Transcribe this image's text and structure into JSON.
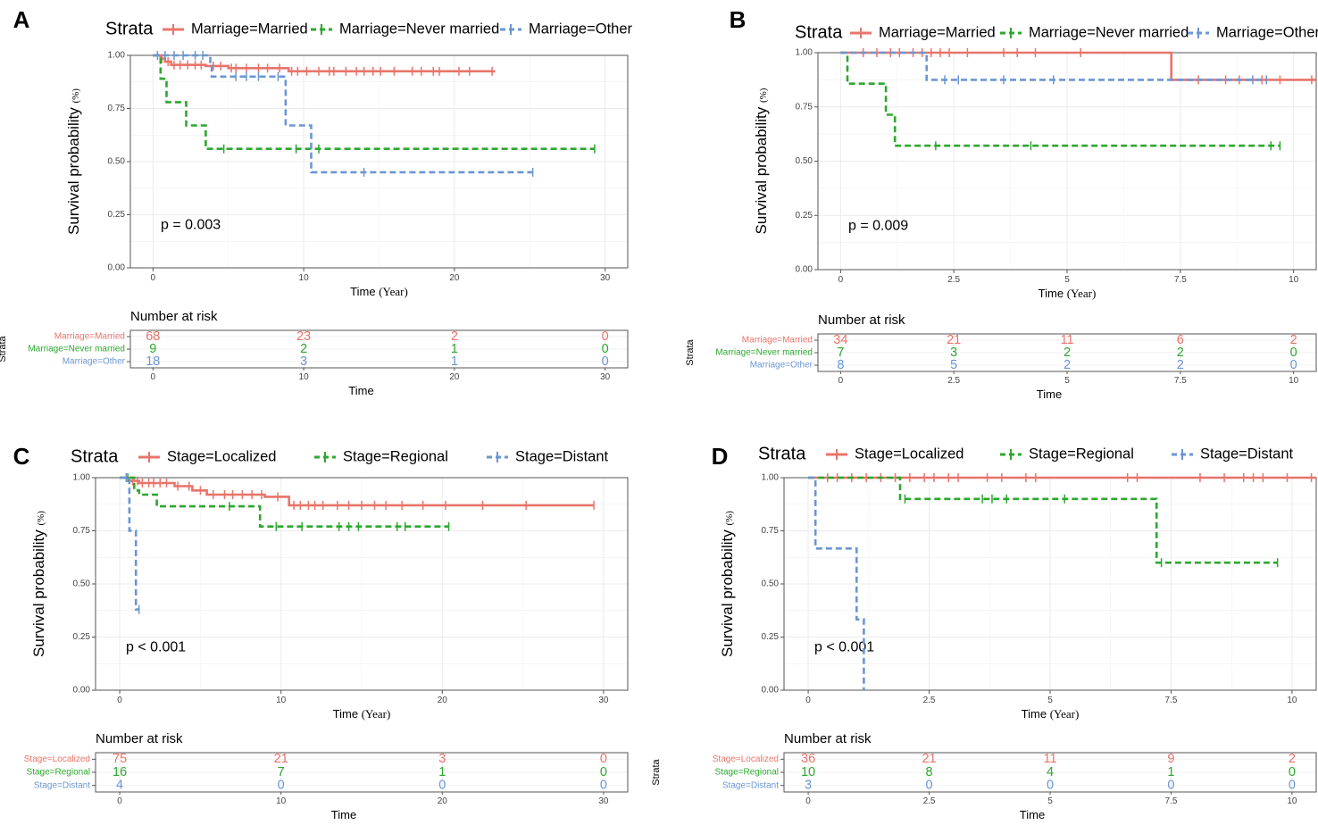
{
  "figure": {
    "common": {
      "legend_title": "Strata",
      "y_axis_label": "Survival probability",
      "y_axis_unit": "(%)",
      "x_axis_label": "Time",
      "x_axis_unit": "(Year)",
      "risk_title": "Number at risk",
      "risk_y_label": "Strata",
      "risk_x_label": "Time",
      "y_ticks": [
        "0.00",
        "0.25",
        "0.50",
        "0.75",
        "1.00"
      ]
    },
    "colors": {
      "red": "#E8746A",
      "green": "#2CA82E",
      "blue": "#6A96D4"
    }
  },
  "chart_data": [
    {
      "panel": "A",
      "type": "line",
      "legend": [
        "Marriage=Married",
        "Marriage=Never married",
        "Marriage=Other"
      ],
      "xlim": [
        -1.5,
        31.5
      ],
      "ylim": [
        0,
        1
      ],
      "x_ticks": [
        0,
        10,
        20,
        30
      ],
      "x_tick_labels": [
        "0",
        "10",
        "20",
        "30"
      ],
      "pvalue": "p = 0.003",
      "series": [
        {
          "name": "Marriage=Married",
          "color": "red",
          "dash": false,
          "steps": [
            [
              0,
              1
            ],
            [
              0.5,
              0.985
            ],
            [
              0.8,
              0.97
            ],
            [
              1.2,
              0.955
            ],
            [
              3.5,
              0.95
            ],
            [
              5,
              0.94
            ],
            [
              9,
              0.925
            ],
            [
              22.7,
              0.925
            ]
          ],
          "censors": [
            0.6,
            1.0,
            1.4,
            1.8,
            2.3,
            2.8,
            3.2,
            4.0,
            4.5,
            5.2,
            5.5,
            6.2,
            7.0,
            7.6,
            8.4,
            9.2,
            9.6,
            10.2,
            11.0,
            11.7,
            12.0,
            12.8,
            13.5,
            14.0,
            14.6,
            15.1,
            16.0,
            17.2,
            17.8,
            18.6,
            19.0,
            20.3,
            21.0,
            22.5
          ]
        },
        {
          "name": "Marriage=Never married",
          "color": "green",
          "dash": true,
          "steps": [
            [
              0,
              1
            ],
            [
              0.5,
              0.89
            ],
            [
              0.9,
              0.78
            ],
            [
              2.2,
              0.67
            ],
            [
              3.5,
              0.56
            ],
            [
              29.3,
              0.56
            ]
          ],
          "censors": [
            4.7,
            9.5,
            11.0,
            29.3
          ]
        },
        {
          "name": "Marriage=Other",
          "color": "blue",
          "dash": true,
          "steps": [
            [
              0,
              1
            ],
            [
              3.8,
              0.95
            ],
            [
              3.9,
              0.9
            ],
            [
              8.8,
              0.67
            ],
            [
              10.5,
              0.45
            ],
            [
              25.2,
              0.45
            ]
          ],
          "censors": [
            0.3,
            0.8,
            1.4,
            2.0,
            2.8,
            3.3,
            5.5,
            6.2,
            7.0,
            8.3,
            14.0,
            25.2
          ]
        }
      ],
      "risk": {
        "x": [
          0,
          10,
          20,
          30
        ],
        "rows": [
          {
            "label": "Marriage=Married",
            "color": "red",
            "values": [
              "68",
              "23",
              "2",
              "0"
            ]
          },
          {
            "label": "Marriage=Never married",
            "color": "green",
            "values": [
              "9",
              "2",
              "1",
              "0"
            ]
          },
          {
            "label": "Marriage=Other",
            "color": "blue",
            "values": [
              "18",
              "3",
              "1",
              "0"
            ]
          }
        ]
      }
    },
    {
      "panel": "B",
      "type": "line",
      "legend": [
        "Marriage=Married",
        "Marriage=Never married",
        "Marriage=Other"
      ],
      "xlim": [
        -0.5,
        10.5
      ],
      "ylim": [
        0,
        1
      ],
      "x_ticks": [
        0,
        2.5,
        5,
        7.5,
        10
      ],
      "x_tick_labels": [
        "0",
        "2.5",
        "5",
        "7.5",
        "10"
      ],
      "pvalue": "p = 0.009",
      "series": [
        {
          "name": "Marriage=Married",
          "color": "red",
          "dash": false,
          "steps": [
            [
              0,
              1
            ],
            [
              7.3,
              0.875
            ],
            [
              10.5,
              0.875
            ]
          ],
          "censors": [
            0.5,
            0.8,
            1.1,
            1.3,
            1.6,
            1.8,
            2.0,
            2.2,
            2.4,
            2.8,
            3.6,
            3.9,
            4.3,
            5.3,
            7.9,
            8.5,
            8.8,
            9.3,
            9.7,
            10.4
          ]
        },
        {
          "name": "Marriage=Never married",
          "color": "green",
          "dash": true,
          "steps": [
            [
              0,
              1
            ],
            [
              0.15,
              0.857
            ],
            [
              1.0,
              0.714
            ],
            [
              1.2,
              0.571
            ],
            [
              9.7,
              0.571
            ]
          ],
          "censors": [
            2.1,
            4.2,
            9.5,
            9.7
          ]
        },
        {
          "name": "Marriage=Other",
          "color": "blue",
          "dash": true,
          "steps": [
            [
              0,
              1
            ],
            [
              1.9,
              0.875
            ],
            [
              9.4,
              0.875
            ]
          ],
          "censors": [
            2.3,
            2.6,
            3.6,
            4.7,
            9.1,
            9.4
          ]
        }
      ],
      "risk": {
        "x": [
          0,
          2.5,
          5,
          7.5,
          10
        ],
        "rows": [
          {
            "label": "Marriage=Married",
            "color": "red",
            "values": [
              "34",
              "21",
              "11",
              "6",
              "2"
            ]
          },
          {
            "label": "Marriage=Never married",
            "color": "green",
            "values": [
              "7",
              "3",
              "2",
              "2",
              "0"
            ]
          },
          {
            "label": "Marriage=Other",
            "color": "blue",
            "values": [
              "8",
              "5",
              "2",
              "2",
              "0"
            ]
          }
        ]
      }
    },
    {
      "panel": "C",
      "type": "line",
      "legend": [
        "Stage=Localized",
        "Stage=Regional",
        "Stage=Distant"
      ],
      "xlim": [
        -1.5,
        31.5
      ],
      "ylim": [
        0,
        1
      ],
      "x_ticks": [
        0,
        10,
        20,
        30
      ],
      "x_tick_labels": [
        "0",
        "10",
        "20",
        "30"
      ],
      "pvalue": "p < 0.001",
      "series": [
        {
          "name": "Stage=Localized",
          "color": "red",
          "dash": false,
          "steps": [
            [
              0,
              1
            ],
            [
              0.6,
              0.985
            ],
            [
              1.2,
              0.975
            ],
            [
              3.4,
              0.96
            ],
            [
              4.5,
              0.94
            ],
            [
              5.4,
              0.92
            ],
            [
              9.0,
              0.91
            ],
            [
              10.5,
              0.87
            ],
            [
              29.4,
              0.87
            ]
          ],
          "censors": [
            0.8,
            1.1,
            1.4,
            1.8,
            2.1,
            2.5,
            2.9,
            3.6,
            4.3,
            5.0,
            5.8,
            6.5,
            7.0,
            7.6,
            8.2,
            8.8,
            9.8,
            10.8,
            11.2,
            11.7,
            12.1,
            12.6,
            13.5,
            14.2,
            15.0,
            15.8,
            16.5,
            17.5,
            18.8,
            20.2,
            22.5,
            25.2,
            29.4
          ]
        },
        {
          "name": "Stage=Regional",
          "color": "green",
          "dash": true,
          "steps": [
            [
              0,
              1
            ],
            [
              0.9,
              0.94
            ],
            [
              1.2,
              0.92
            ],
            [
              2.3,
              0.865
            ],
            [
              8.7,
              0.77
            ],
            [
              20.4,
              0.77
            ]
          ],
          "censors": [
            0.5,
            6.8,
            9.7,
            11.3,
            13.6,
            14.2,
            14.8,
            17.2,
            17.7,
            20.4
          ]
        },
        {
          "name": "Stage=Distant",
          "color": "blue",
          "dash": true,
          "steps": [
            [
              0,
              1
            ],
            [
              0.6,
              0.75
            ],
            [
              1.0,
              0.38
            ],
            [
              1.2,
              0.38
            ]
          ],
          "censors": [
            0.4,
            1.2
          ]
        }
      ],
      "risk": {
        "x": [
          0,
          10,
          20,
          30
        ],
        "rows": [
          {
            "label": "Stage=Localized",
            "color": "red",
            "values": [
              "75",
              "21",
              "3",
              "0"
            ]
          },
          {
            "label": "Stage=Regional",
            "color": "green",
            "values": [
              "16",
              "7",
              "1",
              "0"
            ]
          },
          {
            "label": "Stage=Distant",
            "color": "blue",
            "values": [
              "4",
              "0",
              "0",
              "0"
            ]
          }
        ]
      }
    },
    {
      "panel": "D",
      "type": "line",
      "legend": [
        "Stage=Localized",
        "Stage=Regional",
        "Stage=Distant"
      ],
      "xlim": [
        -0.5,
        10.5
      ],
      "ylim": [
        0,
        1
      ],
      "x_ticks": [
        0,
        2.5,
        5,
        7.5,
        10
      ],
      "x_tick_labels": [
        "0",
        "2.5",
        "5",
        "7.5",
        "10"
      ],
      "pvalue": "p < 0.001",
      "series": [
        {
          "name": "Stage=Localized",
          "color": "red",
          "dash": false,
          "steps": [
            [
              0,
              1
            ],
            [
              10.5,
              1
            ]
          ],
          "censors": [
            0.4,
            0.6,
            0.9,
            1.2,
            1.5,
            1.8,
            2.1,
            2.4,
            2.6,
            2.9,
            3.1,
            3.7,
            4.0,
            4.5,
            4.7,
            6.6,
            6.8,
            8.1,
            8.6,
            9.0,
            9.2,
            9.4,
            9.9,
            10.4
          ]
        },
        {
          "name": "Stage=Regional",
          "color": "green",
          "dash": true,
          "steps": [
            [
              0,
              1
            ],
            [
              1.9,
              0.9
            ],
            [
              7.2,
              0.6
            ],
            [
              9.7,
              0.6
            ]
          ],
          "censors": [
            2.0,
            3.6,
            3.8,
            4.1,
            5.3,
            7.3,
            9.7
          ]
        },
        {
          "name": "Stage=Distant",
          "color": "blue",
          "dash": true,
          "steps": [
            [
              0,
              1
            ],
            [
              0.15,
              0.667
            ],
            [
              1.0,
              0.333
            ],
            [
              1.15,
              0
            ],
            [
              1.15,
              0
            ]
          ],
          "censors": []
        }
      ],
      "risk": {
        "x": [
          0,
          2.5,
          5,
          7.5,
          10
        ],
        "rows": [
          {
            "label": "Stage=Localized",
            "color": "red",
            "values": [
              "36",
              "21",
              "11",
              "9",
              "2"
            ]
          },
          {
            "label": "Stage=Regional",
            "color": "green",
            "values": [
              "10",
              "8",
              "4",
              "1",
              "0"
            ]
          },
          {
            "label": "Stage=Distant",
            "color": "blue",
            "values": [
              "3",
              "0",
              "0",
              "0",
              "0"
            ]
          }
        ]
      }
    }
  ]
}
